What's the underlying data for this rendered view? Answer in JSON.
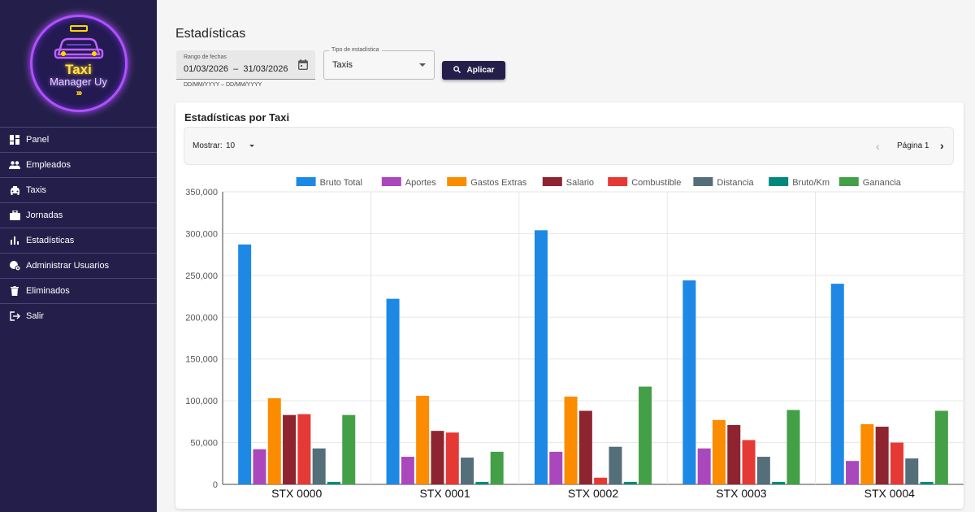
{
  "app": {
    "logo_line1": "Taxi",
    "logo_line2": "Manager Uy"
  },
  "sidebar": {
    "items": [
      {
        "label": "Panel",
        "icon": "dashboard-icon"
      },
      {
        "label": "Empleados",
        "icon": "people-icon"
      },
      {
        "label": "Taxis",
        "icon": "taxi-icon"
      },
      {
        "label": "Jornadas",
        "icon": "briefcase-icon"
      },
      {
        "label": "Estadísticas",
        "icon": "bar-chart-icon"
      },
      {
        "label": "Administrar Usuarios",
        "icon": "admin-user-icon"
      },
      {
        "label": "Eliminados",
        "icon": "trash-icon"
      },
      {
        "label": "Salir",
        "icon": "logout-icon"
      }
    ]
  },
  "page": {
    "title": "Estadísticas"
  },
  "filters": {
    "date_label": "Rango de fechas",
    "date_value": "01/03/2026  –  31/03/2026",
    "date_hint": "DD/MM/YYYY – DD/MM/YYYY",
    "type_label": "Tipo de estadística",
    "type_value": "Taxis",
    "apply_label": "Aplicar"
  },
  "card": {
    "title": "Estadísticas por Taxi",
    "show_label": "Mostrar:",
    "show_value": "10",
    "page_label": "Página 1"
  },
  "colors": {
    "sidebar_bg": "#241f4a",
    "accent": "#241f4a"
  },
  "chart_data": {
    "type": "bar",
    "categories": [
      "STX 0000",
      "STX 0001",
      "STX 0002",
      "STX 0003",
      "STX 0004"
    ],
    "series": [
      {
        "name": "Bruto Total",
        "color": "#1e88e5",
        "values": [
          287000,
          222000,
          304000,
          244000,
          240000
        ]
      },
      {
        "name": "Aportes",
        "color": "#ab47bc",
        "values": [
          42000,
          33000,
          39000,
          43000,
          28000
        ]
      },
      {
        "name": "Gastos Extras",
        "color": "#fb8c00",
        "values": [
          103000,
          106000,
          105000,
          77000,
          72000
        ]
      },
      {
        "name": "Salario",
        "color": "#8e2430",
        "values": [
          83000,
          64000,
          88000,
          71000,
          69000
        ]
      },
      {
        "name": "Combustible",
        "color": "#e53935",
        "values": [
          84000,
          62000,
          8000,
          53000,
          50000
        ]
      },
      {
        "name": "Distancia",
        "color": "#546e7a",
        "values": [
          43000,
          32000,
          45000,
          33000,
          31000
        ]
      },
      {
        "name": "Bruto/Km",
        "color": "#00897b",
        "values": [
          3000,
          3000,
          3000,
          3000,
          3000
        ]
      },
      {
        "name": "Ganancia",
        "color": "#43a047",
        "values": [
          83000,
          39000,
          117000,
          89000,
          88000
        ]
      }
    ],
    "ylim": [
      0,
      350000
    ],
    "yticks": [
      "0",
      "50,000",
      "100,000",
      "150,000",
      "200,000",
      "250,000",
      "300,000",
      "350,000"
    ],
    "ytick_values": [
      0,
      50000,
      100000,
      150000,
      200000,
      250000,
      300000,
      350000
    ],
    "grid": true,
    "legend_position": "top-center"
  }
}
